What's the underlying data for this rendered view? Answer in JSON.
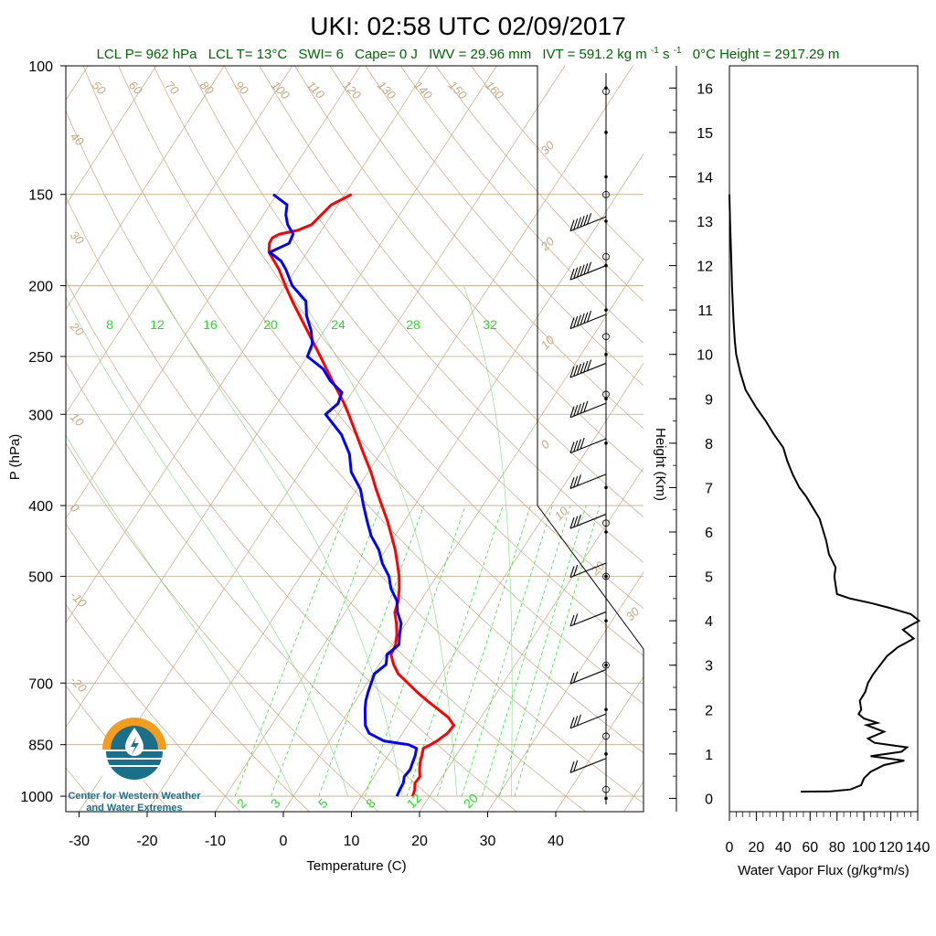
{
  "title": "UKI: 02:58 UTC 02/09/2017",
  "stats_line": {
    "lcl_p": "LCL P= 962 hPa",
    "lcl_t": "LCL T= 13°C",
    "swi": "SWI= 6",
    "cape": "Cape= 0 J",
    "iwv": "IWV = 29.96 mm",
    "ivt": "IVT = 591.2 kg m",
    "ivt_units_tail": " s",
    "ivt_exp": "-1",
    "zero_height": "0°C Height = 2917.29 m"
  },
  "logo": {
    "line1": "Center for Western Weather",
    "line2": "and Water Extremes"
  },
  "colors": {
    "temperature": "#ff0000",
    "dewpoint": "#0000ff",
    "isotherm_adiabat": "#c8a882",
    "mixing_ratio": "#22dd22",
    "stats_text": "#006600",
    "logo_orange": "#f39c1e",
    "logo_blue": "#1a6f8a"
  },
  "chart_data": [
    {
      "type": "line",
      "subtype": "skew-t log-p sounding",
      "xlabel": "Temperature (C)",
      "ylabel": "P (hPa)",
      "x_ticks": [
        -30,
        -20,
        -10,
        0,
        10,
        20,
        30,
        40
      ],
      "y_ticks": [
        100,
        150,
        200,
        250,
        300,
        400,
        500,
        700,
        850,
        1000
      ],
      "xlim": [
        -34,
        48
      ],
      "ylim": [
        1050,
        100
      ],
      "y_scale": "log",
      "skew": true,
      "dry_adiabat_labels": [
        "50",
        "60",
        "70",
        "80",
        "90",
        "100",
        "110",
        "120",
        "130",
        "140",
        "150",
        "160",
        "40",
        "30",
        "20",
        "10",
        "0",
        "-10",
        "-20"
      ],
      "moist_adiabat_labels": [
        "30",
        "20",
        "10",
        "0",
        "10",
        "20",
        "30"
      ],
      "mixing_ratio_top_labels": [
        "8",
        "12",
        "16",
        "20",
        "24",
        "28",
        "32"
      ],
      "mixing_ratio_bottom_labels": [
        "2",
        "3",
        "5",
        "8",
        "12",
        "20"
      ],
      "series": [
        {
          "label": "temperature",
          "p": [
            1000,
            980,
            960,
            940,
            920,
            900,
            880,
            860,
            850,
            840,
            820,
            800,
            780,
            760,
            740,
            720,
            700,
            680,
            660,
            640,
            620,
            600,
            580,
            560,
            540,
            520,
            500,
            480,
            460,
            440,
            420,
            400,
            380,
            360,
            340,
            320,
            300,
            290,
            280,
            270,
            260,
            250,
            240,
            230,
            220,
            210,
            200,
            190,
            180,
            175,
            172,
            170,
            168,
            165,
            160,
            155,
            150
          ],
          "t": [
            17.5,
            17.2,
            16.6,
            16.7,
            16.0,
            15.4,
            15.0,
            14.5,
            15.2,
            15.8,
            16.6,
            16.8,
            15.2,
            12.9,
            10.5,
            8.2,
            6.0,
            3.7,
            2.1,
            0.8,
            0.5,
            -0.3,
            -1.4,
            -2.7,
            -3.3,
            -4.3,
            -5.5,
            -7.0,
            -8.6,
            -10.5,
            -12.5,
            -14.8,
            -17.2,
            -19.6,
            -22.4,
            -25.3,
            -28.4,
            -30.1,
            -32.0,
            -34.0,
            -36.0,
            -38.1,
            -40.3,
            -42.6,
            -45.0,
            -47.5,
            -50.0,
            -52.5,
            -55.6,
            -56.4,
            -56.5,
            -55.8,
            -53.5,
            -52.0,
            -51.5,
            -51.0,
            -49.0
          ]
        },
        {
          "label": "dewpoint",
          "p": [
            1000,
            980,
            960,
            940,
            920,
            900,
            880,
            860,
            850,
            840,
            820,
            800,
            780,
            760,
            740,
            720,
            700,
            680,
            660,
            640,
            620,
            600,
            580,
            560,
            540,
            520,
            500,
            480,
            460,
            440,
            420,
            400,
            380,
            360,
            340,
            320,
            300,
            290,
            280,
            270,
            260,
            250,
            240,
            230,
            220,
            210,
            200,
            190,
            185,
            180,
            175,
            170,
            165,
            160,
            155,
            150
          ],
          "t": [
            15.2,
            15.0,
            14.9,
            14.4,
            14.6,
            14.3,
            14.0,
            13.5,
            12.0,
            8.0,
            5.1,
            3.8,
            3.0,
            2.2,
            1.5,
            1.0,
            0.6,
            0.2,
            1.0,
            0.2,
            1.0,
            0.1,
            -0.7,
            -2.3,
            -3.5,
            -5.5,
            -7.0,
            -9.2,
            -11.0,
            -13.5,
            -15.5,
            -17.5,
            -19.5,
            -22.5,
            -24.5,
            -27.5,
            -31.8,
            -31.0,
            -31.5,
            -34.3,
            -36.5,
            -40.0,
            -40.5,
            -42.0,
            -44.0,
            -45.5,
            -49.0,
            -51.5,
            -53.0,
            -55.5,
            -53.5,
            -53.8,
            -55.5,
            -56.7,
            -57.5,
            -60.5
          ]
        }
      ]
    },
    {
      "type": "line",
      "subtype": "wind barbs",
      "heights_km": [
        13.1,
        12.0,
        10.9,
        9.8,
        8.9,
        8.1,
        7.3,
        6.4,
        5.3,
        4.2,
        2.9,
        1.9,
        0.9
      ],
      "wind_speed_kt": [
        60,
        60,
        60,
        55,
        45,
        40,
        30,
        25,
        20,
        20,
        20,
        25,
        20
      ],
      "wind_direction_deg": [
        260,
        260,
        260,
        255,
        250,
        245,
        235,
        225,
        215,
        215,
        210,
        230,
        230
      ]
    },
    {
      "type": "line",
      "subtype": "water vapor flux profile",
      "xlabel": "Water Vapor Flux (g/kg*m/s)",
      "ylabel": "Height (Km)",
      "x_ticks": [
        0,
        20,
        40,
        60,
        80,
        100,
        120,
        140
      ],
      "y_ticks": [
        0,
        1,
        2,
        3,
        4,
        5,
        6,
        7,
        8,
        9,
        10,
        11,
        12,
        13,
        14,
        15,
        16
      ],
      "xlim": [
        0,
        140
      ],
      "ylim": [
        -0.3,
        16.5
      ],
      "series": [
        {
          "label": "flux",
          "height": [
            0.15,
            0.16,
            0.2,
            0.3,
            0.45,
            0.6,
            0.75,
            0.85,
            0.95,
            1.05,
            1.15,
            1.25,
            1.35,
            1.5,
            1.65,
            1.7,
            1.8,
            1.9,
            2.0,
            2.2,
            2.4,
            2.6,
            2.8,
            3.0,
            3.2,
            3.4,
            3.6,
            3.8,
            4.0,
            4.15,
            4.3,
            4.4,
            4.5,
            4.6,
            4.8,
            5.0,
            5.2,
            5.5,
            5.8,
            6.0,
            6.3,
            6.5,
            6.8,
            7.0,
            7.3,
            7.6,
            7.9,
            8.2,
            8.5,
            8.8,
            9.2,
            9.6,
            10.0,
            10.3,
            10.8,
            11.5,
            12.0,
            12.5,
            13.0,
            13.6
          ],
          "flux": [
            53,
            75,
            90,
            98,
            100,
            105,
            115,
            130,
            105,
            128,
            132,
            108,
            103,
            115,
            102,
            110,
            100,
            96,
            98,
            97,
            101,
            103,
            107,
            112,
            117,
            125,
            137,
            129,
            141,
            135,
            118,
            105,
            90,
            80,
            79,
            78,
            79,
            74,
            72,
            70,
            67,
            63,
            57,
            52,
            47,
            43,
            40,
            33,
            27,
            20,
            12,
            8,
            5,
            4,
            3,
            2,
            1.5,
            1,
            0.5,
            0
          ]
        }
      ]
    }
  ]
}
